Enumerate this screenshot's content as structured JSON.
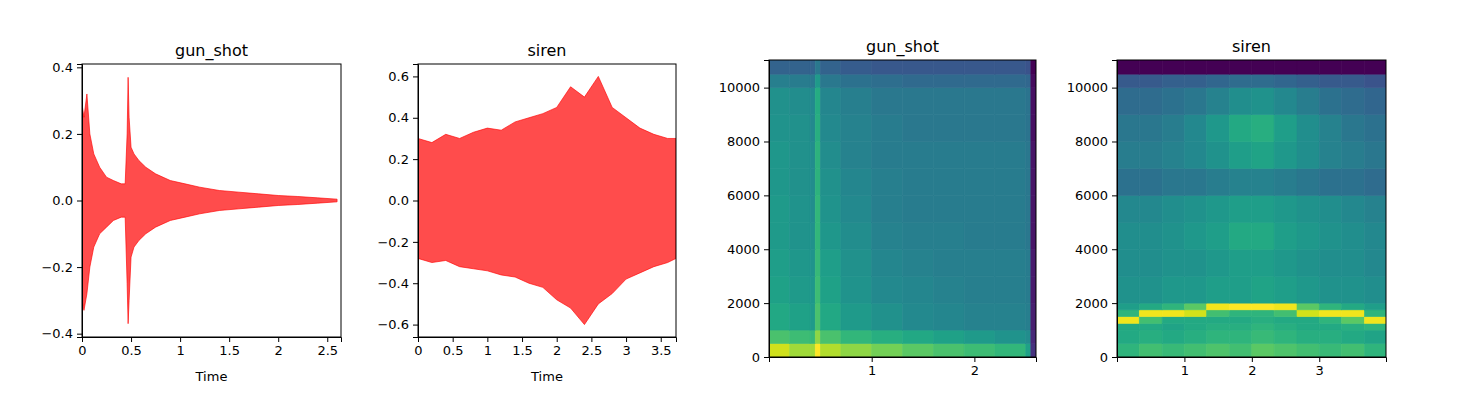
{
  "chart_data": [
    {
      "type": "area",
      "title": "gun_shot",
      "xlabel": "Time",
      "color": "red",
      "x": [
        0,
        0.02,
        0.05,
        0.08,
        0.12,
        0.18,
        0.25,
        0.32,
        0.4,
        0.44,
        0.46,
        0.47,
        0.48,
        0.5,
        0.53,
        0.58,
        0.65,
        0.75,
        0.9,
        1.05,
        1.2,
        1.4,
        1.6,
        1.8,
        2.0,
        2.2,
        2.4,
        2.6
      ],
      "max": [
        0.29,
        0.25,
        0.32,
        0.2,
        0.14,
        0.1,
        0.07,
        0.06,
        0.05,
        0.05,
        0.2,
        0.37,
        0.25,
        0.16,
        0.14,
        0.12,
        0.1,
        0.08,
        0.06,
        0.05,
        0.04,
        0.03,
        0.025,
        0.02,
        0.015,
        0.012,
        0.008,
        0.004
      ],
      "min": [
        -0.3,
        -0.33,
        -0.28,
        -0.2,
        -0.14,
        -0.1,
        -0.08,
        -0.06,
        -0.05,
        -0.05,
        -0.25,
        -0.37,
        -0.3,
        -0.17,
        -0.14,
        -0.12,
        -0.1,
        -0.08,
        -0.06,
        -0.05,
        -0.04,
        -0.03,
        -0.025,
        -0.02,
        -0.015,
        -0.012,
        -0.008,
        -0.004
      ],
      "xlim": [
        0,
        2.64
      ],
      "xticks": [
        0,
        0.5,
        1,
        1.5,
        2,
        2.5
      ],
      "ylim": [
        -0.41,
        0.41
      ],
      "yticks": [
        {
          "value": -0.4,
          "label": "−0.4"
        },
        {
          "value": -0.2,
          "label": "−0.2"
        },
        {
          "value": 0,
          "label": "0.0"
        },
        0.2,
        0.4
      ]
    },
    {
      "type": "area",
      "title": "siren",
      "xlabel": "Time",
      "color": "red",
      "x": [
        0,
        0.2,
        0.4,
        0.6,
        0.8,
        1.0,
        1.2,
        1.4,
        1.6,
        1.8,
        2.0,
        2.2,
        2.4,
        2.6,
        2.8,
        3.0,
        3.2,
        3.4,
        3.6,
        3.72
      ],
      "max": [
        0.3,
        0.28,
        0.32,
        0.3,
        0.33,
        0.35,
        0.34,
        0.38,
        0.4,
        0.42,
        0.45,
        0.55,
        0.5,
        0.6,
        0.45,
        0.4,
        0.35,
        0.32,
        0.3,
        0.3
      ],
      "min": [
        -0.28,
        -0.3,
        -0.29,
        -0.32,
        -0.33,
        -0.34,
        -0.36,
        -0.37,
        -0.4,
        -0.42,
        -0.48,
        -0.52,
        -0.6,
        -0.5,
        -0.45,
        -0.38,
        -0.35,
        -0.32,
        -0.3,
        -0.28
      ],
      "xlim": [
        0,
        3.72
      ],
      "xticks": [
        0,
        0.5,
        1,
        1.5,
        2,
        2.5,
        3,
        3.5
      ],
      "ylim": [
        -0.66,
        0.66
      ],
      "yticks": [
        {
          "value": -0.6,
          "label": "−0.6"
        },
        {
          "value": -0.4,
          "label": "−0.4"
        },
        {
          "value": -0.2,
          "label": "−0.2"
        },
        {
          "value": 0,
          "label": "0.0"
        },
        0.2,
        0.4,
        0.6
      ]
    },
    {
      "type": "heatmap",
      "title": "gun_shot",
      "color": "viridis",
      "xbins": [
        0,
        0.2,
        0.4,
        0.45,
        0.5,
        0.7,
        1.0,
        1.3,
        1.6,
        1.9,
        2.2,
        2.5,
        2.55,
        2.6
      ],
      "ybins": [
        0,
        500,
        1000,
        2000,
        3000,
        4000,
        5000,
        6000,
        7000,
        8000,
        9000,
        10000,
        10500,
        11025
      ],
      "z": [
        [
          -15,
          -20,
          -20,
          -10,
          -18,
          -22,
          -25,
          -28,
          -30,
          -32,
          -34,
          -40,
          -70
        ],
        [
          -30,
          -32,
          -33,
          -22,
          -30,
          -34,
          -36,
          -38,
          -40,
          -42,
          -44,
          -46,
          -72
        ],
        [
          -38,
          -40,
          -42,
          -30,
          -38,
          -42,
          -45,
          -47,
          -48,
          -49,
          -49,
          -50,
          -74
        ],
        [
          -40,
          -42,
          -43,
          -32,
          -40,
          -44,
          -47,
          -48,
          -49,
          -50,
          -50,
          -51,
          -75
        ],
        [
          -41,
          -43,
          -44,
          -33,
          -41,
          -45,
          -48,
          -49,
          -50,
          -50,
          -50,
          -51,
          -75
        ],
        [
          -42,
          -44,
          -45,
          -34,
          -43,
          -46,
          -49,
          -50,
          -50,
          -51,
          -51,
          -52,
          -76
        ],
        [
          -42,
          -44,
          -46,
          -34,
          -44,
          -47,
          -50,
          -51,
          -51,
          -51,
          -51,
          -52,
          -76
        ],
        [
          -43,
          -45,
          -46,
          -35,
          -45,
          -48,
          -50,
          -51,
          -51,
          -51,
          -51,
          -52,
          -76
        ],
        [
          -43,
          -45,
          -46,
          -35,
          -46,
          -49,
          -51,
          -51,
          -51,
          -51,
          -51,
          -52,
          -76
        ],
        [
          -44,
          -45,
          -47,
          -36,
          -47,
          -49,
          -51,
          -52,
          -52,
          -52,
          -52,
          -53,
          -77
        ],
        [
          -45,
          -46,
          -47,
          -37,
          -48,
          -50,
          -52,
          -52,
          -52,
          -52,
          -52,
          -53,
          -77
        ],
        [
          -50,
          -51,
          -52,
          -42,
          -52,
          -54,
          -55,
          -56,
          -56,
          -56,
          -56,
          -57,
          -78
        ],
        [
          -58,
          -58,
          -58,
          -52,
          -58,
          -60,
          -61,
          -61,
          -61,
          -61,
          -61,
          -62,
          -80
        ]
      ],
      "xlim": [
        0,
        2.6
      ],
      "xticks": [
        1,
        2
      ],
      "ylim": [
        0,
        11025
      ],
      "yticks": [
        0,
        2000,
        4000,
        6000,
        8000,
        10000
      ]
    },
    {
      "type": "heatmap",
      "title": "siren",
      "color": "viridis",
      "xbins": [
        0,
        0.33,
        0.67,
        1.0,
        1.33,
        1.67,
        2.0,
        2.33,
        2.67,
        3.0,
        3.33,
        3.67,
        3.99
      ],
      "ybins": [
        0,
        500,
        1000,
        1250,
        1500,
        1750,
        2000,
        3000,
        4000,
        5000,
        6000,
        7000,
        8000,
        9000,
        10000,
        10500,
        11025
      ],
      "z": [
        [
          -22,
          -20,
          -21,
          -20,
          -19,
          -20,
          -18,
          -19,
          -20,
          -21,
          -20,
          -22
        ],
        [
          -24,
          -23,
          -24,
          -23,
          -22,
          -22,
          -21,
          -22,
          -23,
          -23,
          -24,
          -25
        ],
        [
          -24,
          -24,
          -25,
          -24,
          -23,
          -23,
          -22,
          -23,
          -24,
          -24,
          -23,
          -22
        ],
        [
          -8,
          -20,
          -24,
          -24,
          -24,
          -24,
          -23,
          -24,
          -24,
          -22,
          -18,
          -8
        ],
        [
          -22,
          -8,
          -8,
          -10,
          -20,
          -22,
          -22,
          -20,
          -10,
          -8,
          -8,
          -22
        ],
        [
          -26,
          -24,
          -22,
          -18,
          -8,
          -7,
          -7,
          -8,
          -18,
          -22,
          -24,
          -26
        ],
        [
          -28,
          -28,
          -27,
          -27,
          -26,
          -26,
          -25,
          -26,
          -27,
          -28,
          -28,
          -29
        ],
        [
          -29,
          -29,
          -28,
          -28,
          -27,
          -26,
          -26,
          -27,
          -28,
          -29,
          -29,
          -30
        ],
        [
          -29,
          -29,
          -28,
          -27,
          -26,
          -24,
          -24,
          -26,
          -27,
          -28,
          -29,
          -30
        ],
        [
          -30,
          -30,
          -29,
          -28,
          -27,
          -26,
          -26,
          -27,
          -28,
          -29,
          -30,
          -31
        ],
        [
          -34,
          -34,
          -33,
          -33,
          -32,
          -31,
          -31,
          -32,
          -33,
          -34,
          -34,
          -35
        ],
        [
          -32,
          -32,
          -31,
          -30,
          -28,
          -26,
          -25,
          -27,
          -29,
          -31,
          -32,
          -33
        ],
        [
          -33,
          -33,
          -32,
          -30,
          -27,
          -24,
          -23,
          -26,
          -29,
          -31,
          -33,
          -34
        ],
        [
          -35,
          -35,
          -34,
          -33,
          -31,
          -29,
          -28,
          -30,
          -32,
          -34,
          -35,
          -36
        ],
        [
          -38,
          -38,
          -37,
          -37,
          -36,
          -35,
          -35,
          -36,
          -37,
          -38,
          -38,
          -39
        ],
        [
          -50,
          -50,
          -50,
          -50,
          -50,
          -50,
          -50,
          -50,
          -50,
          -50,
          -50,
          -50
        ]
      ],
      "xlim": [
        0,
        3.99
      ],
      "xticks": [
        1,
        2,
        3
      ],
      "ylim": [
        0,
        11025
      ],
      "yticks": [
        0,
        2000,
        4000,
        6000,
        8000,
        10000
      ]
    }
  ]
}
